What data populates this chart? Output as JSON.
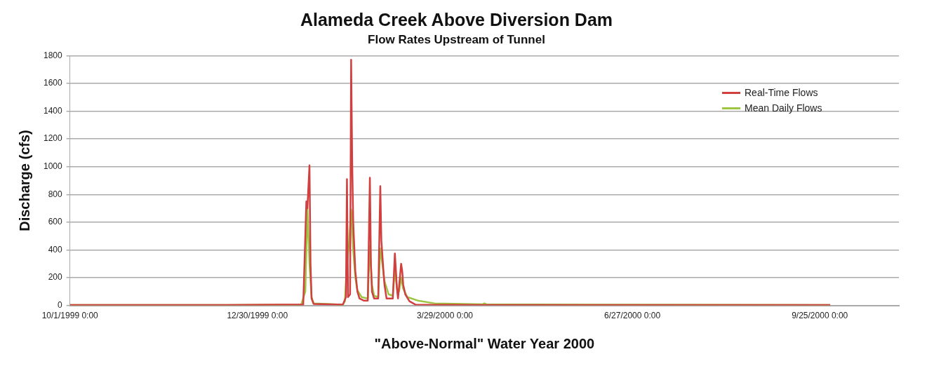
{
  "chart_data": {
    "type": "line",
    "title": "Alameda Creek Above Diversion Dam",
    "subtitle": "Flow Rates Upstream of Tunnel",
    "xlabel": "\"Above-Normal\" Water Year 2000",
    "ylabel": "Discharge (cfs)",
    "xlim": [
      "1999-10-01",
      "2000-11-02"
    ],
    "xticks": [
      {
        "value": "1999-10-01",
        "label": "10/1/1999 0:00"
      },
      {
        "value": "1999-12-30",
        "label": "12/30/1999 0:00"
      },
      {
        "value": "2000-03-29",
        "label": "3/29/2000 0:00"
      },
      {
        "value": "2000-06-27",
        "label": "6/27/2000 0:00"
      },
      {
        "value": "2000-09-25",
        "label": "9/25/2000 0:00"
      }
    ],
    "ylim": [
      0,
      1800
    ],
    "yticks": [
      0,
      200,
      400,
      600,
      800,
      1000,
      1200,
      1400,
      1600,
      1800
    ],
    "grid": "y",
    "legend": "top right",
    "marker": "none",
    "line_style": "solid",
    "series": [
      {
        "name": "Real-Time Flows",
        "color": "#d13f3f",
        "x": [
          "1999-10-01",
          "1999-12-15",
          "2000-01-10",
          "2000-01-21",
          "2000-01-22T12:00",
          "2000-01-23",
          "2000-01-24",
          "2000-01-24T12:00",
          "2000-01-25",
          "2000-01-26",
          "2000-02-09",
          "2000-02-10T12:00",
          "2000-02-11",
          "2000-02-11T12:00",
          "2000-02-12T12:00",
          "2000-02-13",
          "2000-02-13T12:00",
          "2000-02-14",
          "2000-02-15",
          "2000-02-16",
          "2000-02-17",
          "2000-02-19",
          "2000-02-21",
          "2000-02-22",
          "2000-02-22T12:00",
          "2000-02-23",
          "2000-02-24",
          "2000-02-26",
          "2000-02-27",
          "2000-02-27T12:00",
          "2000-02-28T12:00",
          "2000-02-29",
          "2000-03-01",
          "2000-03-04",
          "2000-03-05",
          "2000-03-05T12:00",
          "2000-03-06",
          "2000-03-06T12:00",
          "2000-03-08",
          "2000-03-08T12:00",
          "2000-03-09",
          "2000-03-10",
          "2000-03-12",
          "2000-03-15",
          "2000-04-17",
          "2000-06-01",
          "2000-09-30"
        ],
        "values": [
          3,
          3,
          5,
          5,
          750,
          700,
          1010,
          300,
          50,
          10,
          5,
          60,
          910,
          60,
          80,
          1770,
          1035,
          600,
          250,
          100,
          50,
          35,
          35,
          920,
          300,
          100,
          50,
          50,
          860,
          470,
          250,
          150,
          50,
          50,
          375,
          250,
          120,
          50,
          300,
          250,
          150,
          80,
          30,
          5,
          3,
          3,
          3
        ]
      },
      {
        "name": "Mean Daily Flows",
        "color": "#9cc542",
        "x": [
          "1999-10-01",
          "1999-12-15",
          "2000-01-20",
          "2000-01-22",
          "2000-01-23",
          "2000-01-24",
          "2000-01-25",
          "2000-01-26",
          "2000-02-09",
          "2000-02-10",
          "2000-02-11",
          "2000-02-12",
          "2000-02-13",
          "2000-02-14",
          "2000-02-15",
          "2000-02-16",
          "2000-02-18",
          "2000-02-21",
          "2000-02-22",
          "2000-02-23",
          "2000-02-24",
          "2000-02-26",
          "2000-02-27",
          "2000-02-28",
          "2000-02-29",
          "2000-03-02",
          "2000-03-04",
          "2000-03-05",
          "2000-03-06",
          "2000-03-07",
          "2000-03-08",
          "2000-03-09",
          "2000-03-11",
          "2000-03-16",
          "2000-03-24",
          "2000-04-16",
          "2000-04-17",
          "2000-04-18",
          "2000-06-01",
          "2000-09-30"
        ],
        "values": [
          3,
          3,
          5,
          100,
          700,
          300,
          60,
          15,
          5,
          30,
          300,
          450,
          690,
          400,
          200,
          110,
          60,
          50,
          430,
          150,
          70,
          60,
          410,
          300,
          175,
          80,
          70,
          260,
          120,
          100,
          200,
          120,
          60,
          35,
          15,
          8,
          15,
          8,
          5,
          3
        ]
      }
    ]
  }
}
